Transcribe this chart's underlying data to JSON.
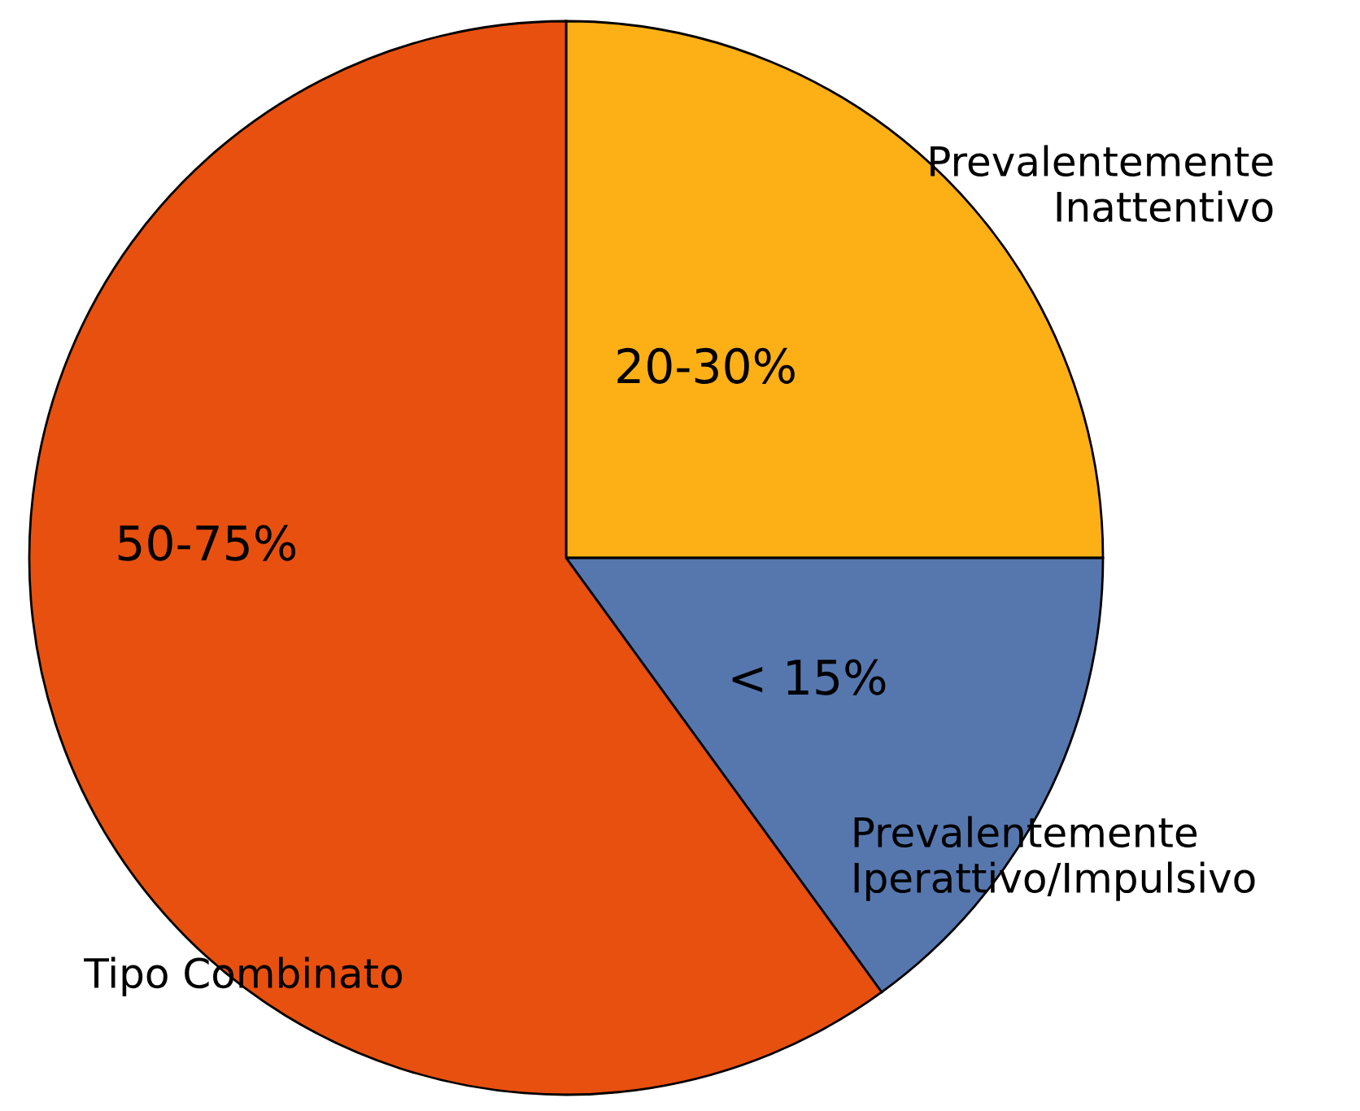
{
  "chart_data": {
    "type": "pie",
    "categories": [
      "Prevalentemente\nInattentivo",
      "Prevalentemente\nIperattivo/Impulsivo",
      "Tipo Combinato"
    ],
    "values": [
      25,
      15,
      60
    ],
    "annotations": [
      "20-30%",
      "< 15%",
      "50-75%"
    ],
    "colors": [
      "#fdb015",
      "#5677ae",
      "#e8500f"
    ]
  }
}
